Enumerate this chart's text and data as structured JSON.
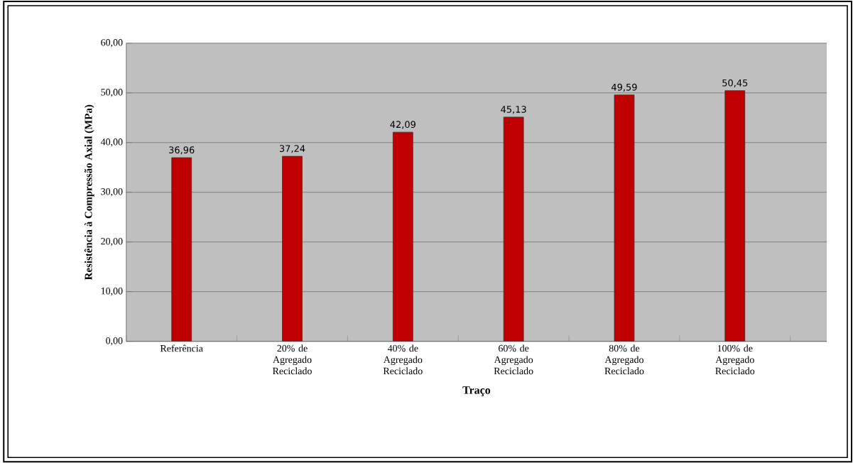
{
  "chart_data": {
    "type": "bar",
    "xlabel": "Traço",
    "ylabel": "Resistência à Compressão Axial (MPa)",
    "categories": [
      "Referência",
      "20% de Agregado Reciclado",
      "40% de Agregado Reciclado",
      "60% de Agregado Reciclado",
      "80% de Agregado Reciclado",
      "100% de Agregado Reciclado"
    ],
    "values": [
      36.96,
      37.24,
      42.09,
      45.13,
      49.59,
      50.45
    ],
    "value_labels": [
      "36,96",
      "37,24",
      "42,09",
      "45,13",
      "49,59",
      "50,45"
    ],
    "color": "#c00000",
    "ylim": [
      0,
      60
    ],
    "yticks": [
      {
        "value": 0,
        "label": "0,00"
      },
      {
        "value": 10,
        "label": "10,00"
      },
      {
        "value": 20,
        "label": "20,00"
      },
      {
        "value": 30,
        "label": "30,00"
      },
      {
        "value": 40,
        "label": "40,00"
      },
      {
        "value": 50,
        "label": "50,00"
      },
      {
        "value": 60,
        "label": "60,00"
      }
    ],
    "grid": "y"
  }
}
